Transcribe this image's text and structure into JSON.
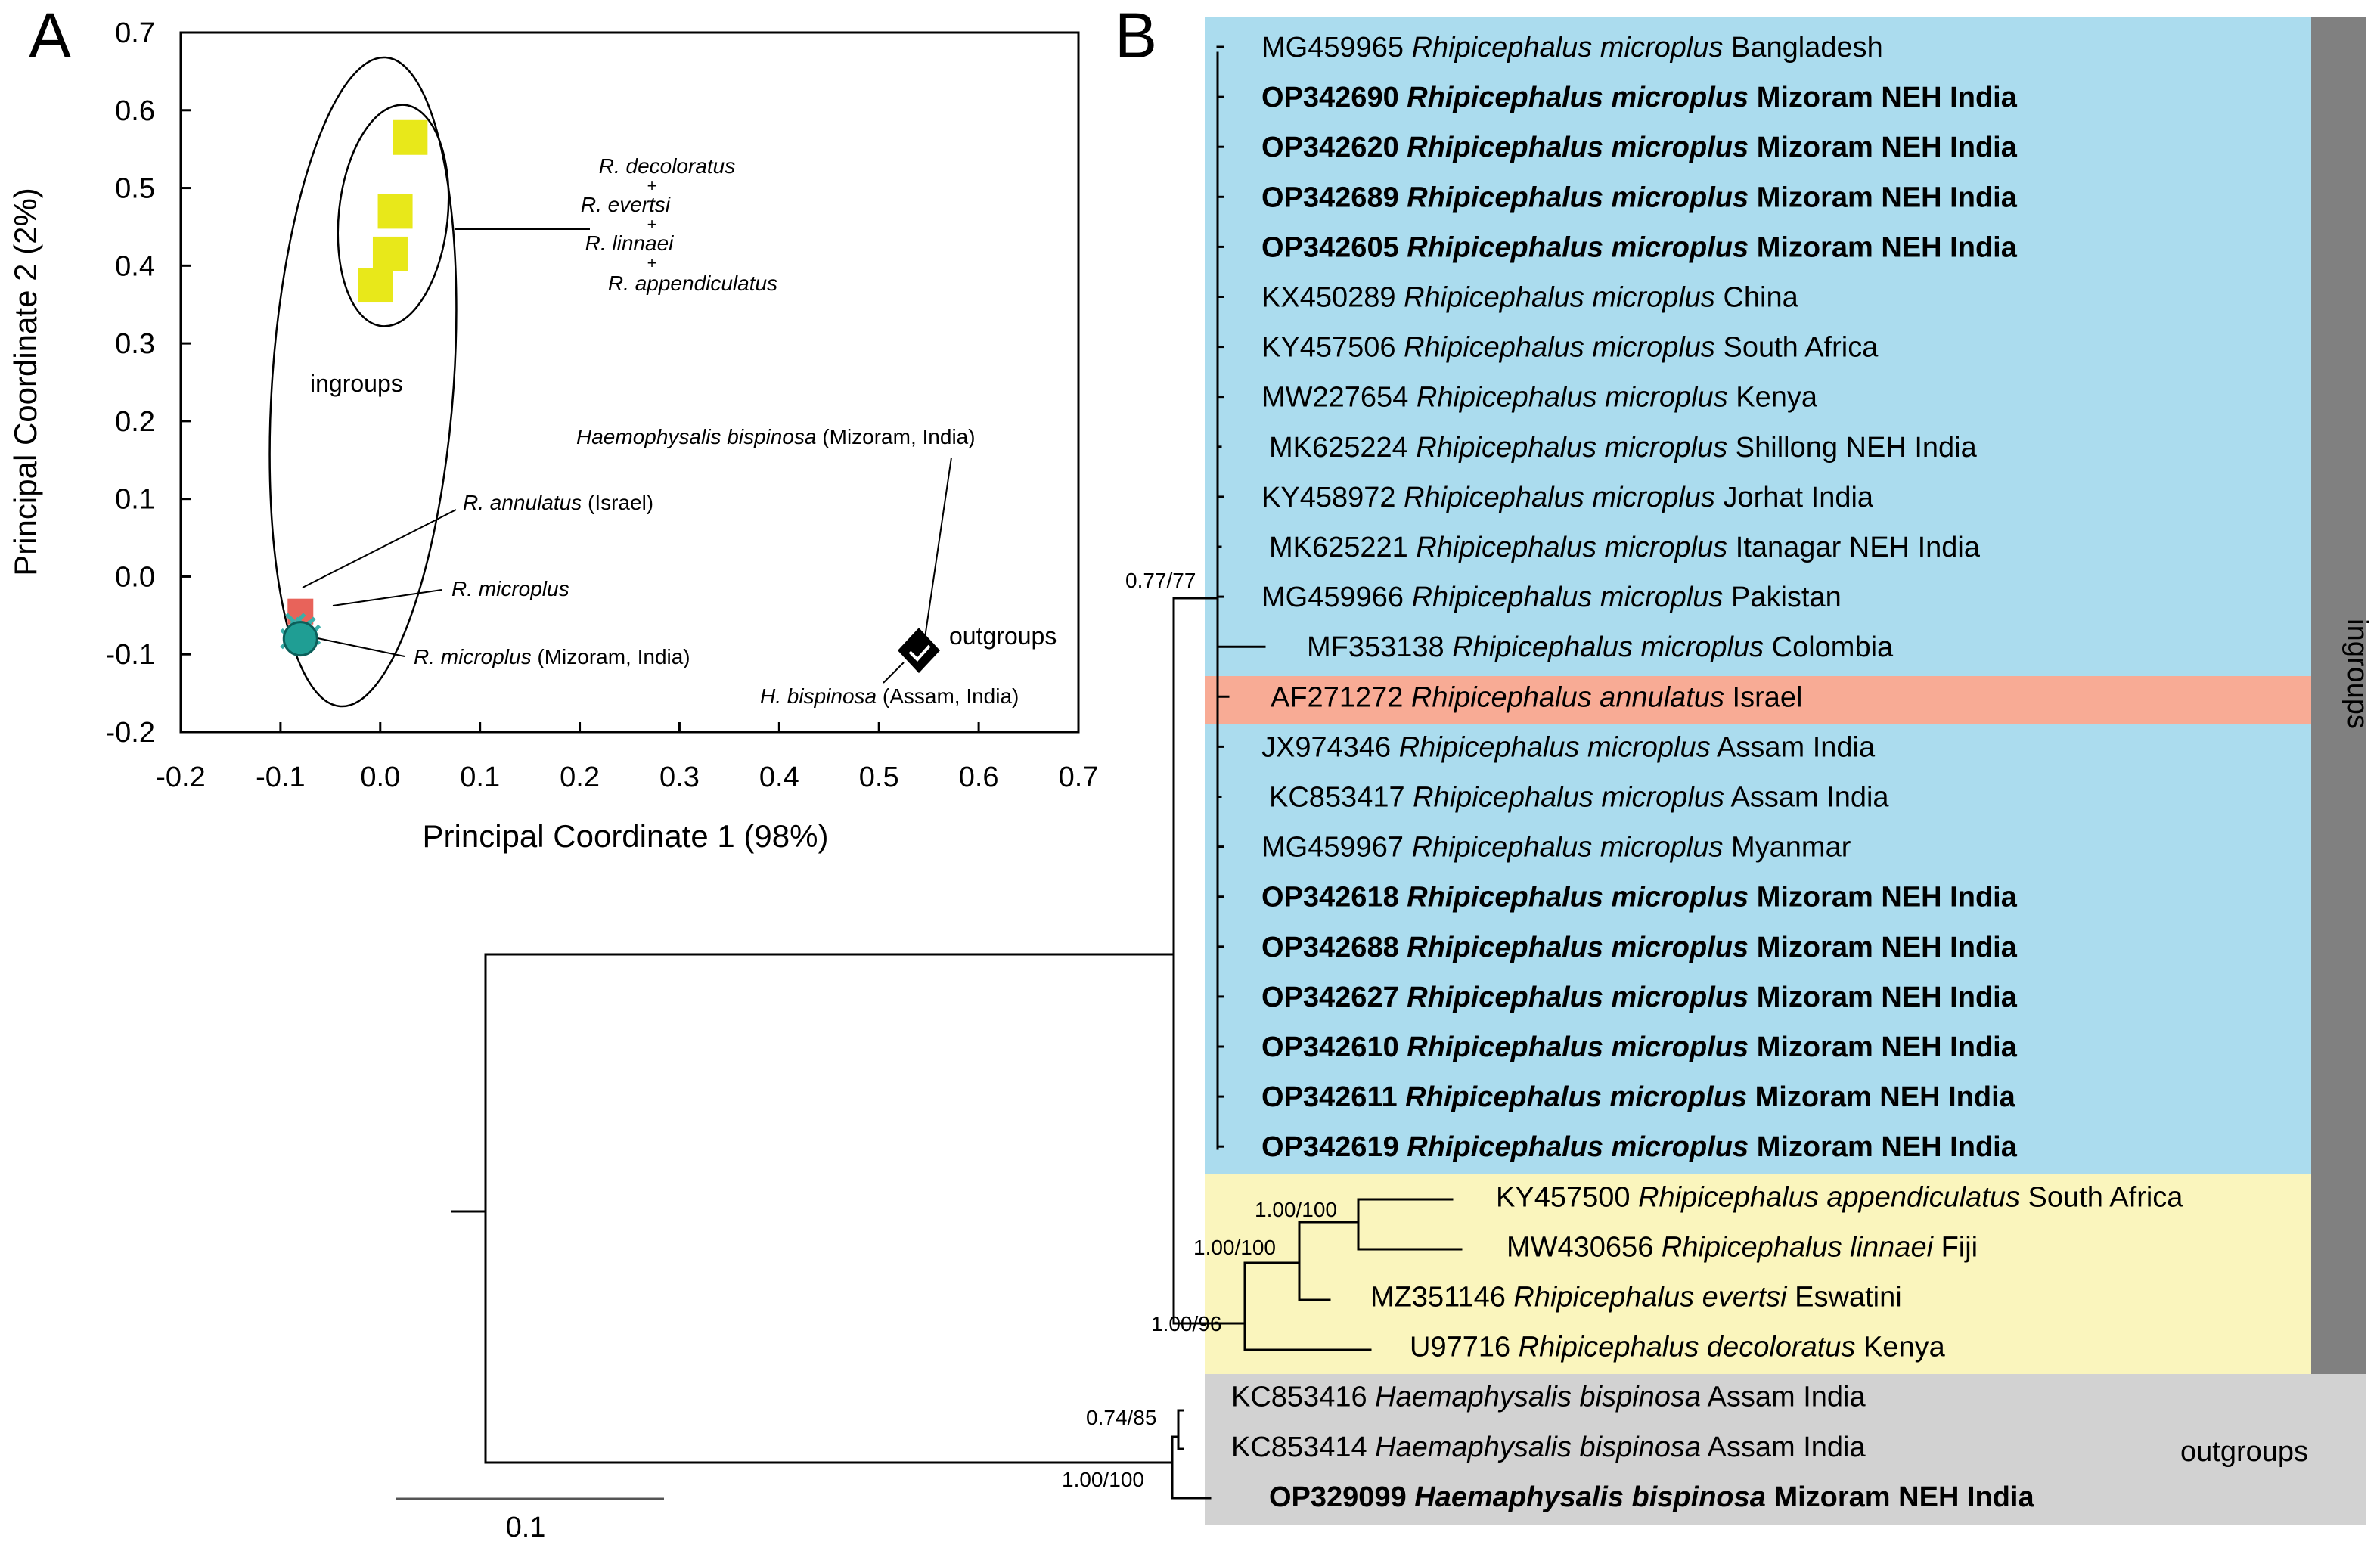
{
  "panel_a": {
    "letter": "A",
    "xlabel": "Principal Coordinate 1 (98%)",
    "ylabel": "Principal Coordinate 2 (2%)",
    "ingroups_label": "ingroups",
    "outgroups_label": "outgroups",
    "annotations": {
      "species_group": [
        "R. decoloratus",
        "+",
        "R. evertsi",
        "+",
        "R. linnaei",
        "+",
        "R. appendiculatus"
      ],
      "haemaphysalis_mizoram": {
        "italic": "Haemophysalis bispinosa",
        "plain": " (Mizoram, India)"
      },
      "annulatus": {
        "italic": "R. annulatus",
        "plain": " (Israel)"
      },
      "microplus": {
        "italic": "R. microplus",
        "plain": ""
      },
      "microplus_mizoram": {
        "italic": "R. microplus",
        "plain": " (Mizoram, India)"
      },
      "bispinosa_assam": {
        "italic": "H. bispinosa",
        "plain": " (Assam, India)"
      }
    }
  },
  "panel_b": {
    "letter": "B",
    "ingroups_label": "ingroups",
    "outgroups_label": "outgroups",
    "scale_bar_label": "0.1",
    "support_values": [
      "0.77/77",
      "1.00/100",
      "1.00/100",
      "1.00/96",
      "0.74/85",
      "1.00/100"
    ],
    "colors": {
      "ingroup_bg": "#abdcee",
      "annulatus_bg": "#f8ab95",
      "outgroup_species_bg": "#faf5bd",
      "outgroup_bg": "#d2d2d2",
      "side_bar": "#808080"
    },
    "taxa": [
      {
        "acc": "MG459965",
        "genus": "Rhipicephalus",
        "species": "microplus",
        "loc": "Bangladesh",
        "bold": false
      },
      {
        "acc": "OP342690",
        "genus": "Rhipicephalus",
        "species": "microplus",
        "loc": "Mizoram NEH India",
        "bold": true
      },
      {
        "acc": "OP342620",
        "genus": "Rhipicephalus",
        "species": "microplus",
        "loc": "Mizoram NEH India",
        "bold": true
      },
      {
        "acc": "OP342689",
        "genus": "Rhipicephalus",
        "species": "microplus",
        "loc": "Mizoram NEH India",
        "bold": true
      },
      {
        "acc": "OP342605",
        "genus": "Rhipicephalus",
        "species": "microplus",
        "loc": "Mizoram NEH India",
        "bold": true
      },
      {
        "acc": "KX450289",
        "genus": "Rhipicephalus",
        "species": "microplus",
        "loc": "China",
        "bold": false
      },
      {
        "acc": "KY457506",
        "genus": "Rhipicephalus",
        "species": "microplus",
        "loc": "South Africa",
        "bold": false
      },
      {
        "acc": "MW227654",
        "genus": "Rhipicephalus",
        "species": "microplus",
        "loc": "Kenya",
        "bold": false
      },
      {
        "acc": "MK625224",
        "genus": "Rhipicephalus",
        "species": "microplus",
        "loc": "Shillong NEH India",
        "bold": false
      },
      {
        "acc": "KY458972",
        "genus": "Rhipicephalus",
        "species": "microplus",
        "loc": "Jorhat India",
        "bold": false
      },
      {
        "acc": "MK625221",
        "genus": "Rhipicephalus",
        "species": "microplus",
        "loc": "Itanagar NEH India",
        "bold": false
      },
      {
        "acc": "MG459966",
        "genus": "Rhipicephalus",
        "species": "microplus",
        "loc": "Pakistan",
        "bold": false
      },
      {
        "acc": "MF353138",
        "genus": "Rhipicephalus",
        "species": "microplus",
        "loc": "Colombia",
        "bold": false
      },
      {
        "acc": "AF271272",
        "genus": "Rhipicephalus",
        "species": "annulatus",
        "loc": "Israel",
        "bold": false
      },
      {
        "acc": "JX974346",
        "genus": "Rhipicephalus",
        "species": "microplus",
        "loc": "Assam India",
        "bold": false
      },
      {
        "acc": "KC853417",
        "genus": "Rhipicephalus",
        "species": "microplus",
        "loc": "Assam India",
        "bold": false
      },
      {
        "acc": "MG459967",
        "genus": "Rhipicephalus",
        "species": "microplus",
        "loc": "Myanmar",
        "bold": false
      },
      {
        "acc": "OP342618",
        "genus": "Rhipicephalus",
        "species": "microplus",
        "loc": "Mizoram NEH India",
        "bold": true
      },
      {
        "acc": "OP342688",
        "genus": "Rhipicephalus",
        "species": "microplus",
        "loc": "Mizoram NEH India",
        "bold": true
      },
      {
        "acc": "OP342627",
        "genus": "Rhipicephalus",
        "species": "microplus",
        "loc": "Mizoram NEH India",
        "bold": true
      },
      {
        "acc": "OP342610",
        "genus": "Rhipicephalus",
        "species": "microplus",
        "loc": "Mizoram NEH India",
        "bold": true
      },
      {
        "acc": "OP342611",
        "genus": "Rhipicephalus",
        "species": "microplus",
        "loc": "Mizoram NEH India",
        "bold": true
      },
      {
        "acc": "OP342619",
        "genus": "Rhipicephalus",
        "species": "microplus",
        "loc": "Mizoram NEH India",
        "bold": true
      },
      {
        "acc": "KY457500",
        "genus": "Rhipicephalus",
        "species": "appendiculatus",
        "loc": "South Africa",
        "bold": false
      },
      {
        "acc": "MW430656",
        "genus": "Rhipicephalus",
        "species": "linnaei",
        "loc": "Fiji",
        "bold": false
      },
      {
        "acc": "MZ351146",
        "genus": "Rhipicephalus",
        "species": "evertsi",
        "loc": "Eswatini",
        "bold": false
      },
      {
        "acc": "U97716",
        "genus": "Rhipicephalus",
        "species": "decoloratus",
        "loc": "Kenya",
        "bold": false
      },
      {
        "acc": "KC853416",
        "genus": "Haemaphysalis",
        "species": "bispinosa",
        "loc": "Assam India",
        "bold": false
      },
      {
        "acc": "KC853414",
        "genus": "Haemaphysalis",
        "species": "bispinosa",
        "loc": "Assam India",
        "bold": false
      },
      {
        "acc": "OP329099",
        "genus": "Haemaphysalis",
        "species": "bispinosa",
        "loc": "Mizoram NEH India",
        "bold": true
      }
    ]
  },
  "chart_data": [
    {
      "type": "scatter",
      "title": "",
      "xlabel": "Principal Coordinate 1 (98%)",
      "ylabel": "Principal Coordinate 2 (2%)",
      "xlim": [
        -0.2,
        0.7
      ],
      "ylim": [
        -0.2,
        0.7
      ],
      "xticks": [
        "-0.2",
        "-0.1",
        "0.0",
        "0.1",
        "0.2",
        "0.3",
        "0.4",
        "0.5",
        "0.6",
        "0.7"
      ],
      "yticks": [
        "-0.2",
        "-0.1",
        "0.0",
        "0.1",
        "0.2",
        "0.3",
        "0.4",
        "0.5",
        "0.6",
        "0.7"
      ],
      "grid": false,
      "series": [
        {
          "color": "#e8e81a",
          "marker": "square",
          "points": [
            [
              0.03,
              0.565
            ],
            [
              0.015,
              0.47
            ],
            [
              0.01,
              0.415
            ],
            [
              -0.005,
              0.375
            ]
          ]
        },
        {
          "color": "#e8635a",
          "marker": "square",
          "points": [
            [
              -0.08,
              -0.045
            ]
          ]
        },
        {
          "color": "#3aafa9",
          "marker": "x",
          "points": [
            [
              -0.085,
              -0.06
            ],
            [
              -0.075,
              -0.065
            ],
            [
              -0.08,
              -0.07
            ],
            [
              -0.07,
              -0.075
            ],
            [
              -0.09,
              -0.08
            ]
          ]
        },
        {
          "color": "#1f9e94",
          "marker": "circle",
          "points": [
            [
              -0.08,
              -0.08
            ]
          ]
        },
        {
          "color": "#000000",
          "marker": "diamond",
          "points": [
            [
              0.54,
              -0.095
            ]
          ]
        }
      ]
    },
    {
      "type": "tree",
      "support_values": [
        "0.77/77",
        "1.00/100",
        "1.00/100",
        "1.00/96",
        "0.74/85",
        "1.00/100"
      ],
      "scale_bar": "0.1"
    }
  ]
}
